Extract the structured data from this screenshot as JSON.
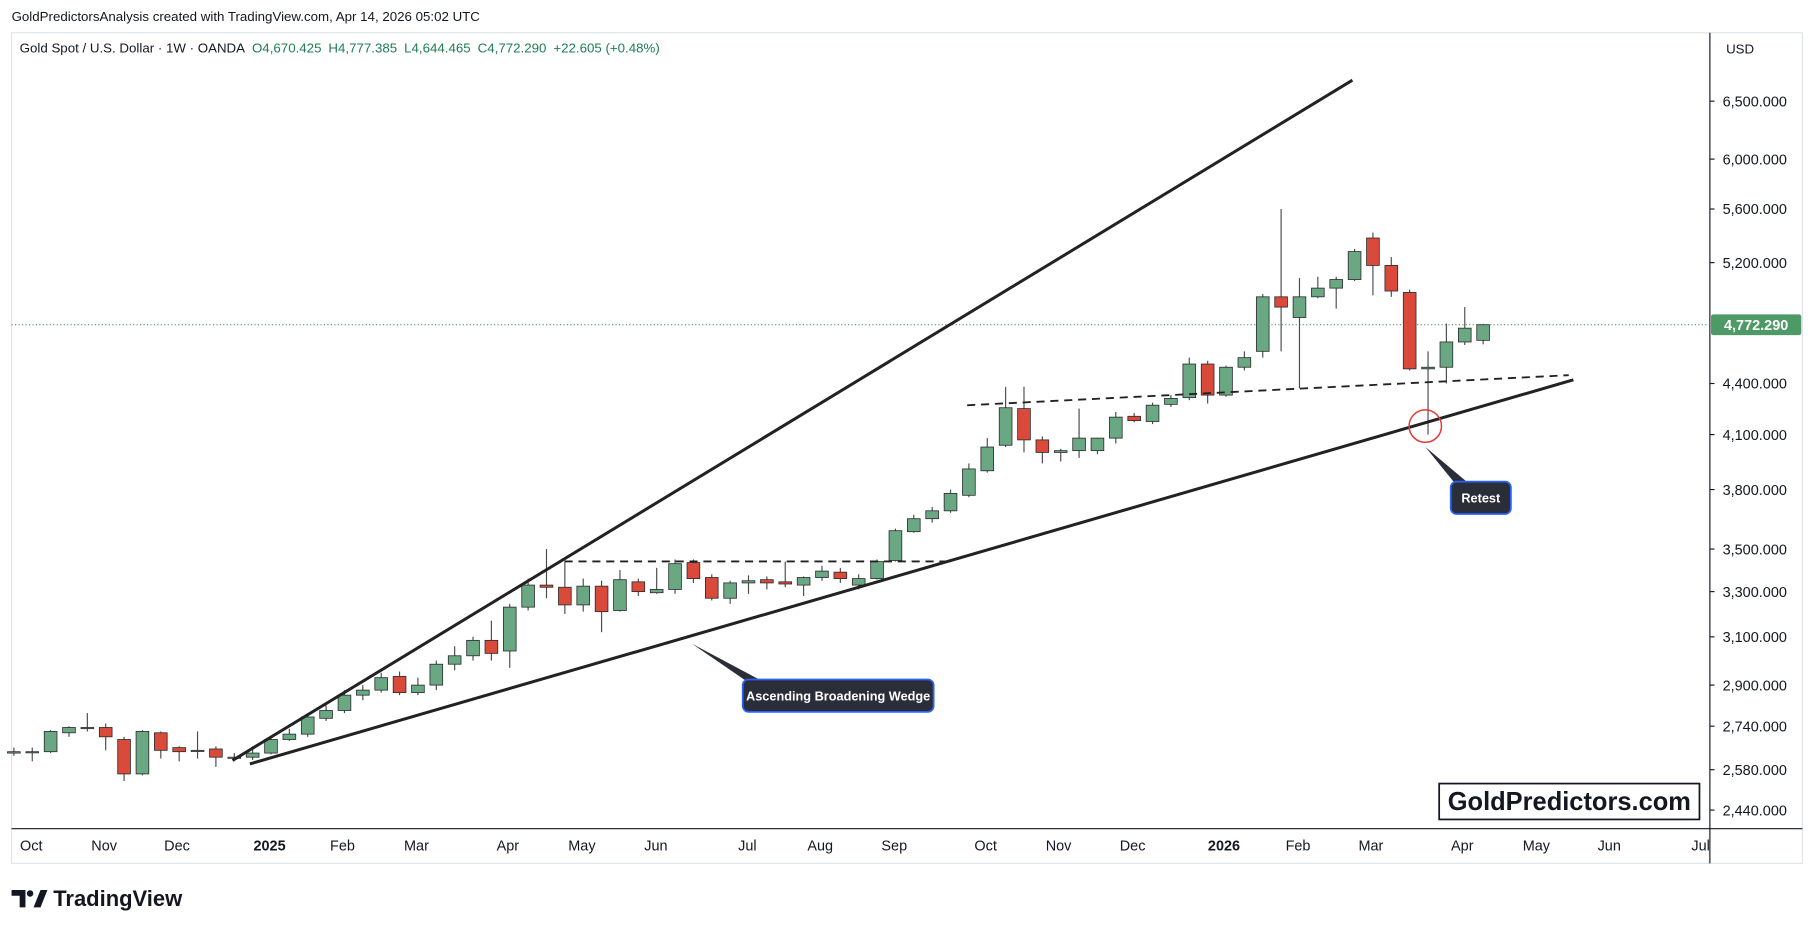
{
  "chart_data": {
    "type": "candlestick",
    "credit": "GoldPredictorsAnalysis created with TradingView.com, Apr 14, 2026 05:02 UTC",
    "title": "Gold Spot / U.S. Dollar · 1W · OANDA",
    "legend_values": [
      "O4,670.425",
      "H4,777.385",
      "L4,644.465",
      "C4,772.290",
      "+22.605 (+0.48%)"
    ],
    "currency": "USD",
    "log_scale": true,
    "ylim": [
      2378,
      7145
    ],
    "yticks": [
      {
        "value": 2440,
        "label": "2,440.000"
      },
      {
        "value": 2580,
        "label": "2,580.000"
      },
      {
        "value": 2740,
        "label": "2,740.000"
      },
      {
        "value": 2900,
        "label": "2,900.000"
      },
      {
        "value": 3100,
        "label": "3,100.000"
      },
      {
        "value": 3300,
        "label": "3,300.000"
      },
      {
        "value": 3500,
        "label": "3,500.000"
      },
      {
        "value": 3800,
        "label": "3,800.000"
      },
      {
        "value": 4100,
        "label": "4,100.000"
      },
      {
        "value": 4400,
        "label": "4,400.000"
      },
      {
        "value": 5200,
        "label": "5,200.000"
      },
      {
        "value": 5600,
        "label": "5,600.000"
      },
      {
        "value": 6000,
        "label": "6,000.000"
      },
      {
        "value": 6500,
        "label": "6,500.000"
      }
    ],
    "xtick_labels": [
      "Oct",
      "Nov",
      "Dec",
      "2025",
      "Feb",
      "Mar",
      "Apr",
      "May",
      "Jun",
      "Jul",
      "Aug",
      "Sep",
      "Oct",
      "Nov",
      "Dec",
      "2026",
      "Feb",
      "Mar",
      "Apr",
      "May",
      "Jun",
      "Jul"
    ],
    "up_color": "#6aa884",
    "down_color": "#d94a3a",
    "last_price": {
      "value": 4772.29,
      "label": "4,772.290",
      "color": "#4e9a67"
    },
    "open": [
      2640,
      2645,
      2645,
      2715,
      2735,
      2735,
      2690,
      2565,
      2715,
      2660,
      2650,
      2655,
      2625,
      2625,
      2640,
      2690,
      2710,
      2770,
      2800,
      2860,
      2880,
      2935,
      2870,
      2900,
      2985,
      3020,
      3085,
      3040,
      3230,
      3330,
      3320,
      3240,
      3325,
      3215,
      3345,
      3295,
      3310,
      3435,
      3365,
      3270,
      3340,
      3355,
      3345,
      3330,
      3365,
      3390,
      3330,
      3360,
      3445,
      3585,
      3650,
      3690,
      3770,
      3900,
      4040,
      4250,
      4070,
      4000,
      4010,
      4010,
      4080,
      4205,
      4175,
      4275,
      4315,
      4520,
      4330,
      4500,
      4600,
      4960,
      4820,
      4960,
      5020,
      5080,
      5380,
      5180,
      4990,
      4490,
      4500,
      4660,
      4670.425
    ],
    "high": [
      2660,
      2660,
      2725,
      2740,
      2790,
      2750,
      2700,
      2725,
      2720,
      2665,
      2720,
      2665,
      2640,
      2665,
      2700,
      2730,
      2790,
      2820,
      2880,
      2900,
      2950,
      2955,
      2930,
      3000,
      3060,
      3100,
      3170,
      3245,
      3360,
      3500,
      3440,
      3360,
      3350,
      3400,
      3360,
      3410,
      3450,
      3450,
      3380,
      3350,
      3375,
      3370,
      3440,
      3370,
      3420,
      3410,
      3380,
      3450,
      3600,
      3670,
      3710,
      3800,
      3940,
      4080,
      4380,
      4380,
      4090,
      4020,
      4250,
      4080,
      4230,
      4225,
      4285,
      4330,
      4560,
      4540,
      4510,
      4600,
      4980,
      5600,
      5090,
      5100,
      5100,
      5300,
      5420,
      5240,
      5010,
      4600,
      4780,
      4890,
      4777.385
    ],
    "low": [
      2630,
      2610,
      2640,
      2700,
      2720,
      2650,
      2540,
      2560,
      2620,
      2610,
      2620,
      2590,
      2615,
      2615,
      2635,
      2685,
      2700,
      2760,
      2790,
      2840,
      2870,
      2860,
      2860,
      2880,
      2960,
      3000,
      3000,
      2970,
      3215,
      3270,
      3200,
      3210,
      3120,
      3210,
      3280,
      3290,
      3290,
      3340,
      3260,
      3245,
      3290,
      3310,
      3320,
      3280,
      3350,
      3340,
      3310,
      3355,
      3440,
      3580,
      3630,
      3680,
      3760,
      3890,
      4030,
      4000,
      3940,
      3950,
      3970,
      3990,
      4050,
      4170,
      4160,
      4260,
      4300,
      4280,
      4320,
      4480,
      4560,
      4600,
      4370,
      4950,
      4880,
      5070,
      4970,
      4960,
      4480,
      4100,
      4400,
      4640,
      4644.465
    ],
    "close": [
      2645,
      2645,
      2720,
      2735,
      2735,
      2700,
      2565,
      2720,
      2650,
      2645,
      2650,
      2625,
      2625,
      2640,
      2690,
      2710,
      2775,
      2800,
      2860,
      2880,
      2930,
      2870,
      2900,
      2985,
      3020,
      3085,
      3030,
      3230,
      3330,
      3320,
      3240,
      3325,
      3210,
      3355,
      3300,
      3310,
      3430,
      3360,
      3270,
      3340,
      3350,
      3340,
      3335,
      3365,
      3395,
      3360,
      3360,
      3440,
      3590,
      3650,
      3690,
      3780,
      3910,
      4030,
      4255,
      4070,
      4000,
      4010,
      4080,
      4080,
      4200,
      4180,
      4270,
      4310,
      4520,
      4330,
      4500,
      4560,
      4960,
      4890,
      4960,
      5020,
      5080,
      5280,
      5180,
      5000,
      4490,
      4500,
      4660,
      4749.685,
      4772.29
    ],
    "annotations": [
      "Ascending Broadening Wedge",
      "Retest"
    ],
    "watermark": "GoldPredictors.com",
    "brand": "TradingView"
  }
}
